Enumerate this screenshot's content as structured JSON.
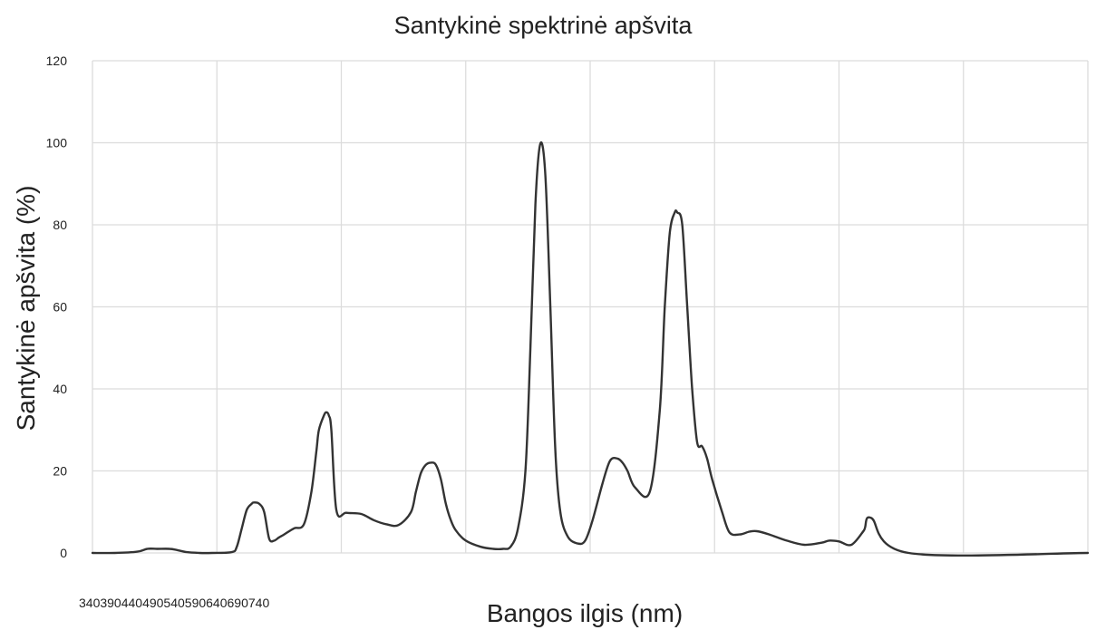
{
  "chart_data": {
    "type": "line",
    "title": "Santykinė spektrinė apšvita",
    "xlabel": "Bangos ilgis (nm)",
    "ylabel": "Santykinė apšvita (%)",
    "ylim": [
      0,
      120
    ],
    "xlim": [
      340,
      740
    ],
    "y_ticks": [
      "0",
      "20",
      "40",
      "60",
      "80",
      "100",
      "120"
    ],
    "x_tick_text": "340390440490540590640690740",
    "grid": true,
    "series": [
      {
        "color": "#333333",
        "x": [
          340,
          349,
          358,
          362,
          366,
          371,
          374,
          378,
          383,
          388,
          396,
          398,
          400,
          402,
          404,
          405,
          407,
          409,
          411,
          413,
          415,
          417,
          421,
          425,
          428,
          430,
          431,
          433,
          434,
          435,
          436,
          438,
          442,
          448,
          453,
          458,
          463,
          468,
          470,
          472,
          474,
          476,
          478,
          480,
          482,
          484,
          486,
          490,
          496,
          501,
          505,
          508,
          511,
          514,
          516,
          518,
          520,
          522,
          524,
          526,
          528,
          531,
          535,
          538,
          541,
          545,
          548,
          551,
          553,
          555,
          558,
          564,
          568,
          570,
          572,
          574,
          575,
          577,
          579,
          581,
          583,
          585,
          587,
          589,
          593,
          596,
          600,
          604,
          607,
          612,
          619,
          626,
          633,
          636,
          640,
          645,
          650,
          653,
          668,
          740
        ],
        "y": [
          0,
          0,
          0.3,
          1,
          1,
          1,
          0.7,
          0.2,
          0,
          0,
          0.2,
          1.5,
          6,
          10.5,
          12,
          12.3,
          12,
          10,
          3.5,
          3,
          3.8,
          4.5,
          6,
          7,
          15,
          25,
          30,
          33.5,
          34.3,
          33.5,
          30,
          10.5,
          9.8,
          9.5,
          8,
          7,
          6.8,
          10,
          15,
          19.5,
          21.5,
          22,
          21.5,
          18,
          12,
          8,
          5.5,
          3,
          1.5,
          1,
          1,
          1.5,
          6,
          20,
          50,
          85,
          99.8,
          92,
          60,
          25,
          10,
          4,
          2.3,
          3,
          8,
          17,
          22.5,
          23,
          22,
          20,
          16,
          15,
          35,
          60,
          78,
          83,
          83,
          80,
          60,
          40,
          27,
          26,
          23,
          18,
          10,
          5,
          4.5,
          5.2,
          5.3,
          4.5,
          3,
          2,
          2.5,
          3,
          2.8,
          2,
          5.5,
          8.5,
          0,
          0
        ]
      }
    ]
  }
}
